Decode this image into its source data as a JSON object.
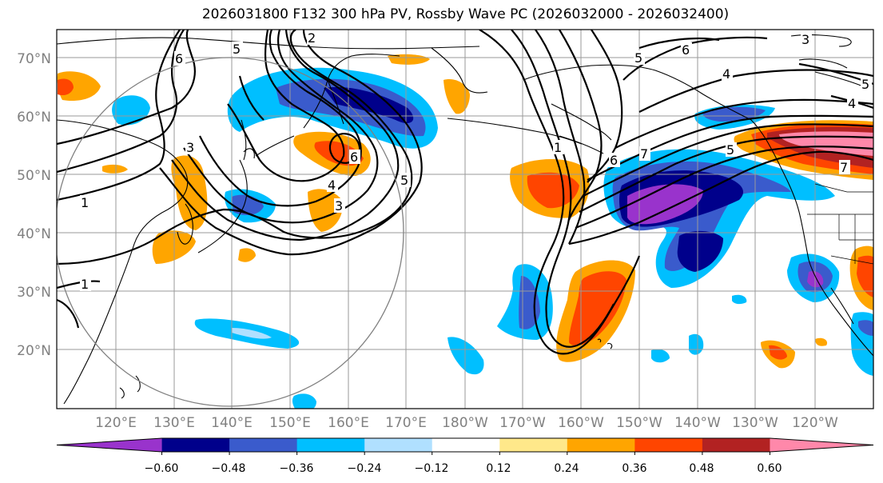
{
  "title": "2026031800 F132 300 hPa PV, Rossby Wave PC (2026032000 - 2026032400)",
  "lat_labels": [
    "70°N",
    "60°N",
    "50°N",
    "40°N",
    "30°N",
    "20°N"
  ],
  "lon_labels": [
    "120°E",
    "130°E",
    "140°E",
    "150°E",
    "160°E",
    "170°E",
    "180°W",
    "170°W",
    "160°W",
    "150°W",
    "140°W",
    "130°W",
    "120°W"
  ],
  "colorbar": {
    "labels": [
      "−0.60",
      "−0.48",
      "−0.36",
      "−0.24",
      "−0.12",
      "0.12",
      "0.24",
      "0.36",
      "0.48",
      "0.60"
    ],
    "colors": [
      "#9933cc",
      "#00008b",
      "#3a5bcc",
      "#00bfff",
      "#b0e0ff",
      "#ffffff",
      "#ffe88a",
      "#ffa500",
      "#ff4500",
      "#b22222",
      "#ff88aa"
    ]
  },
  "contour_labels": [
    "6",
    "5",
    "2",
    "3",
    "6",
    "4",
    "5",
    "6",
    "7",
    "5",
    "4",
    "5",
    "4",
    "6",
    "3",
    "7",
    "1",
    "1",
    "1",
    "3",
    "5"
  ]
}
